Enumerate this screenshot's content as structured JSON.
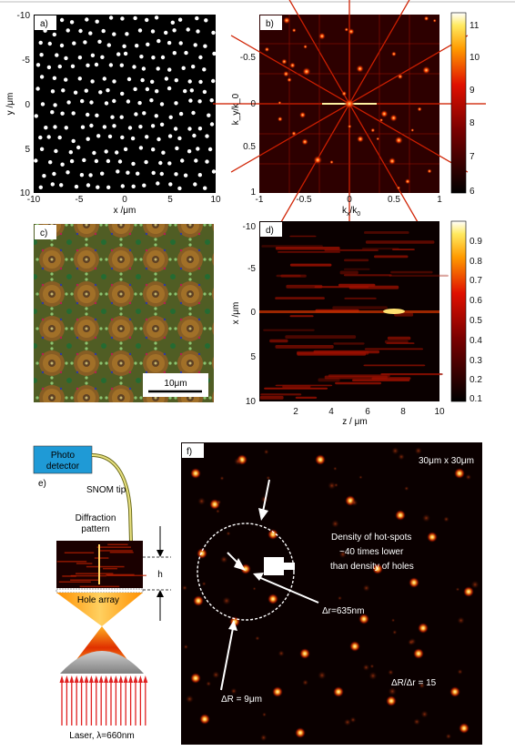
{
  "figure": {
    "top_rule_color": "#cccccc",
    "panels": {
      "a": {
        "tag": "a)",
        "xlabel": "x /μm",
        "ylabel": "y /μm",
        "xticks": [
          "-10",
          "-5",
          "0",
          "5",
          "10"
        ],
        "yticks": [
          "-10",
          "-5",
          "0",
          "5",
          "10"
        ]
      },
      "b": {
        "tag": "b)",
        "xlabel_main": "k",
        "xlabel_sub": "x",
        "xlabel_rest": "/k",
        "xlabel_sub2": "0",
        "ylabel": "k_y/k_0",
        "xticks": [
          "-1",
          "-0.5",
          "0",
          "0.5",
          "1"
        ],
        "yticks": [
          "",
          "-0.5",
          "0",
          "0.5",
          "1"
        ],
        "colorbar_ticks": [
          "11",
          "10",
          "9",
          "8",
          "7",
          "6"
        ]
      },
      "c": {
        "tag": "c)",
        "scalebar": "10μm"
      },
      "d": {
        "tag": "d)",
        "xlabel": "z / μm",
        "ylabel": "x /μm",
        "xticks": [
          "2",
          "4",
          "6",
          "8",
          "10"
        ],
        "yticks": [
          "-10",
          "-5",
          "0",
          "5",
          "10"
        ],
        "colorbar_ticks": [
          "0.9",
          "0.8",
          "0.7",
          "0.6",
          "0.5",
          "0.4",
          "0.3",
          "0.2",
          "0.1"
        ]
      },
      "e": {
        "tag": "e)",
        "photo_detector_line1": "Photo",
        "photo_detector_line2": "detector",
        "snom_tip": "SNOM tip",
        "diffraction_line1": "Diffraction",
        "diffraction_line2": "pattern",
        "h_label": "h",
        "hole_array": "Hole array",
        "laser": "Laser, λ=660nm"
      },
      "f": {
        "tag": "f)",
        "size_label": "30μm x 30μm",
        "density_line1": "Density of hot-spots",
        "density_line2": "~40 times lower",
        "density_line3": "than density of holes",
        "dr_small": "Δr=635nm",
        "dr_big": "ΔR = 9μm",
        "ratio": "ΔR/Δr = 15"
      }
    }
  }
}
